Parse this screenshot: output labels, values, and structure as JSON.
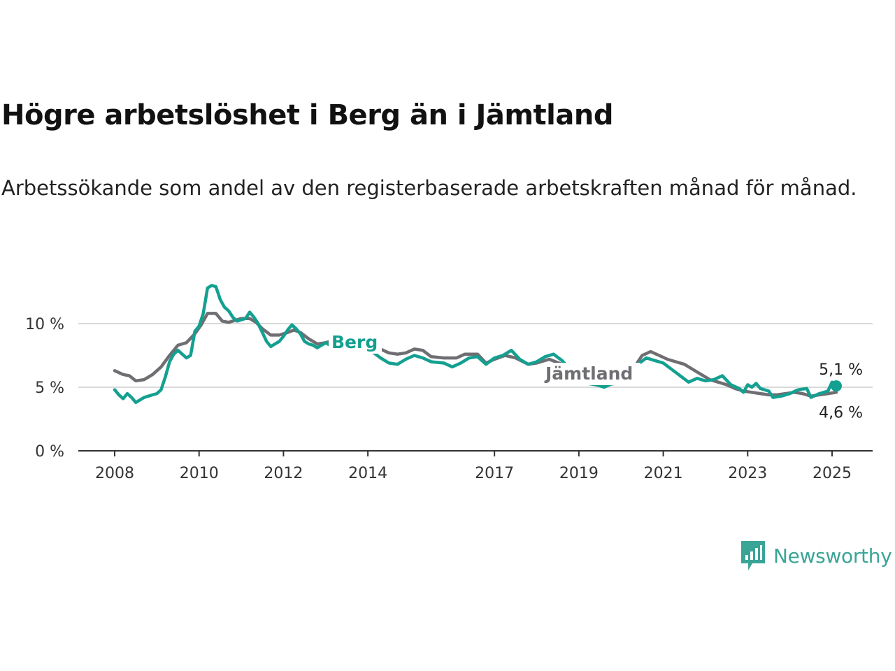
{
  "title": "Högre arbetslöshet i Berg än i Jämtland",
  "subtitle": "Arbetssökande som andel av den registerbaserade arbetskraften månad för månad.",
  "brand": {
    "name": "Newsworthy",
    "icon": "newsworthy-logo-icon",
    "color": "#3aa497"
  },
  "chart_data": {
    "type": "line",
    "y_unit": "%",
    "ylim": [
      0,
      13
    ],
    "xlim": [
      2007.9,
      2025.5
    ],
    "yticks": [
      {
        "value": 0,
        "label": "0 %"
      },
      {
        "value": 5,
        "label": "5 %"
      },
      {
        "value": 10,
        "label": "10 %"
      }
    ],
    "xticks": [
      {
        "value": 2008,
        "label": "2008"
      },
      {
        "value": 2010,
        "label": "2010"
      },
      {
        "value": 2012,
        "label": "2012"
      },
      {
        "value": 2014,
        "label": "2014"
      },
      {
        "value": 2017,
        "label": "2017"
      },
      {
        "value": 2019,
        "label": "2019"
      },
      {
        "value": 2021,
        "label": "2021"
      },
      {
        "value": 2023,
        "label": "2023"
      },
      {
        "value": 2025,
        "label": "2025"
      }
    ],
    "grid": true,
    "series": [
      {
        "name": "Jämtland",
        "color": "#6e6e73",
        "end_label": "4,6 %",
        "points": [
          [
            2008.0,
            6.3
          ],
          [
            2008.2,
            6.0
          ],
          [
            2008.35,
            5.9
          ],
          [
            2008.5,
            5.5
          ],
          [
            2008.7,
            5.6
          ],
          [
            2008.9,
            6.0
          ],
          [
            2009.1,
            6.6
          ],
          [
            2009.3,
            7.5
          ],
          [
            2009.5,
            8.3
          ],
          [
            2009.7,
            8.5
          ],
          [
            2009.9,
            9.2
          ],
          [
            2010.05,
            9.9
          ],
          [
            2010.2,
            10.8
          ],
          [
            2010.4,
            10.8
          ],
          [
            2010.55,
            10.2
          ],
          [
            2010.7,
            10.1
          ],
          [
            2010.9,
            10.3
          ],
          [
            2011.0,
            10.4
          ],
          [
            2011.2,
            10.4
          ],
          [
            2011.35,
            10.1
          ],
          [
            2011.5,
            9.6
          ],
          [
            2011.7,
            9.1
          ],
          [
            2011.9,
            9.1
          ],
          [
            2012.1,
            9.3
          ],
          [
            2012.25,
            9.5
          ],
          [
            2012.4,
            9.3
          ],
          [
            2012.6,
            8.8
          ],
          [
            2012.8,
            8.4
          ],
          [
            2013.0,
            8.5
          ],
          [
            2013.2,
            8.7
          ],
          [
            2013.35,
            9.1
          ],
          [
            2013.5,
            8.8
          ],
          [
            2013.8,
            8.6
          ],
          [
            2014.1,
            8.4
          ],
          [
            2014.3,
            8.0
          ],
          [
            2014.5,
            7.7
          ],
          [
            2014.7,
            7.6
          ],
          [
            2014.9,
            7.7
          ],
          [
            2015.1,
            8.0
          ],
          [
            2015.3,
            7.9
          ],
          [
            2015.5,
            7.4
          ],
          [
            2015.8,
            7.3
          ],
          [
            2016.1,
            7.3
          ],
          [
            2016.3,
            7.6
          ],
          [
            2016.6,
            7.6
          ],
          [
            2016.8,
            6.9
          ],
          [
            2017.0,
            7.2
          ],
          [
            2017.25,
            7.5
          ],
          [
            2017.5,
            7.3
          ],
          [
            2017.8,
            6.8
          ],
          [
            2018.0,
            6.9
          ],
          [
            2018.3,
            7.2
          ],
          [
            2018.6,
            6.8
          ],
          [
            2018.9,
            6.2
          ],
          [
            2019.1,
            5.8
          ],
          [
            2019.3,
            5.4
          ],
          [
            2019.6,
            5.2
          ],
          [
            2019.9,
            5.3
          ],
          [
            2020.1,
            5.8
          ],
          [
            2020.3,
            6.5
          ],
          [
            2020.5,
            7.5
          ],
          [
            2020.7,
            7.8
          ],
          [
            2020.9,
            7.5
          ],
          [
            2021.1,
            7.2
          ],
          [
            2021.3,
            7.0
          ],
          [
            2021.5,
            6.8
          ],
          [
            2021.7,
            6.4
          ],
          [
            2021.9,
            6.0
          ],
          [
            2022.1,
            5.6
          ],
          [
            2022.3,
            5.4
          ],
          [
            2022.5,
            5.2
          ],
          [
            2022.7,
            4.9
          ],
          [
            2022.9,
            4.7
          ],
          [
            2023.1,
            4.6
          ],
          [
            2023.3,
            4.5
          ],
          [
            2023.5,
            4.4
          ],
          [
            2023.7,
            4.4
          ],
          [
            2023.9,
            4.5
          ],
          [
            2024.1,
            4.6
          ],
          [
            2024.3,
            4.5
          ],
          [
            2024.5,
            4.3
          ],
          [
            2024.7,
            4.4
          ],
          [
            2024.9,
            4.5
          ],
          [
            2025.1,
            4.6
          ]
        ]
      },
      {
        "name": "Berg",
        "color": "#14a091",
        "end_label": "5,1 %",
        "points": [
          [
            2008.0,
            4.8
          ],
          [
            2008.1,
            4.4
          ],
          [
            2008.2,
            4.1
          ],
          [
            2008.3,
            4.5
          ],
          [
            2008.4,
            4.2
          ],
          [
            2008.5,
            3.8
          ],
          [
            2008.6,
            4.0
          ],
          [
            2008.7,
            4.2
          ],
          [
            2008.8,
            4.3
          ],
          [
            2008.9,
            4.4
          ],
          [
            2009.0,
            4.5
          ],
          [
            2009.1,
            4.8
          ],
          [
            2009.2,
            5.8
          ],
          [
            2009.3,
            7.0
          ],
          [
            2009.4,
            7.6
          ],
          [
            2009.5,
            7.9
          ],
          [
            2009.6,
            7.6
          ],
          [
            2009.7,
            7.3
          ],
          [
            2009.8,
            7.5
          ],
          [
            2009.9,
            9.4
          ],
          [
            2010.0,
            9.8
          ],
          [
            2010.1,
            10.8
          ],
          [
            2010.2,
            12.8
          ],
          [
            2010.3,
            13.0
          ],
          [
            2010.4,
            12.9
          ],
          [
            2010.5,
            11.9
          ],
          [
            2010.6,
            11.3
          ],
          [
            2010.7,
            11.0
          ],
          [
            2010.8,
            10.5
          ],
          [
            2010.9,
            10.2
          ],
          [
            2011.0,
            10.3
          ],
          [
            2011.1,
            10.4
          ],
          [
            2011.2,
            10.9
          ],
          [
            2011.3,
            10.5
          ],
          [
            2011.4,
            10.0
          ],
          [
            2011.5,
            9.3
          ],
          [
            2011.6,
            8.6
          ],
          [
            2011.7,
            8.2
          ],
          [
            2011.8,
            8.4
          ],
          [
            2011.9,
            8.6
          ],
          [
            2012.0,
            9.0
          ],
          [
            2012.1,
            9.5
          ],
          [
            2012.2,
            9.9
          ],
          [
            2012.3,
            9.6
          ],
          [
            2012.4,
            9.2
          ],
          [
            2012.5,
            8.6
          ],
          [
            2012.6,
            8.4
          ],
          [
            2012.7,
            8.3
          ],
          [
            2012.8,
            8.1
          ],
          [
            2012.9,
            8.3
          ],
          [
            2013.0,
            8.5
          ],
          [
            2013.1,
            8.3
          ],
          [
            2013.2,
            8.6
          ],
          [
            2013.3,
            8.5
          ],
          [
            2013.5,
            8.7
          ],
          [
            2013.8,
            8.4
          ],
          [
            2014.1,
            7.8
          ],
          [
            2014.3,
            7.3
          ],
          [
            2014.5,
            6.9
          ],
          [
            2014.7,
            6.8
          ],
          [
            2014.9,
            7.2
          ],
          [
            2015.1,
            7.5
          ],
          [
            2015.3,
            7.3
          ],
          [
            2015.5,
            7.0
          ],
          [
            2015.8,
            6.9
          ],
          [
            2016.0,
            6.6
          ],
          [
            2016.2,
            6.9
          ],
          [
            2016.4,
            7.3
          ],
          [
            2016.6,
            7.4
          ],
          [
            2016.8,
            6.8
          ],
          [
            2017.0,
            7.3
          ],
          [
            2017.2,
            7.5
          ],
          [
            2017.4,
            7.9
          ],
          [
            2017.6,
            7.2
          ],
          [
            2017.8,
            6.8
          ],
          [
            2018.0,
            7.0
          ],
          [
            2018.2,
            7.4
          ],
          [
            2018.4,
            7.6
          ],
          [
            2018.6,
            7.1
          ],
          [
            2018.8,
            6.4
          ],
          [
            2019.0,
            5.6
          ],
          [
            2019.2,
            5.3
          ],
          [
            2019.4,
            5.2
          ],
          [
            2019.6,
            5.0
          ],
          [
            2019.8,
            5.3
          ],
          [
            2020.0,
            5.5
          ],
          [
            2020.2,
            6.0
          ],
          [
            2020.4,
            6.8
          ],
          [
            2020.6,
            7.3
          ],
          [
            2020.8,
            7.1
          ],
          [
            2021.0,
            6.9
          ],
          [
            2021.2,
            6.4
          ],
          [
            2021.4,
            5.9
          ],
          [
            2021.6,
            5.4
          ],
          [
            2021.8,
            5.7
          ],
          [
            2022.0,
            5.5
          ],
          [
            2022.2,
            5.6
          ],
          [
            2022.4,
            5.9
          ],
          [
            2022.6,
            5.2
          ],
          [
            2022.8,
            4.9
          ],
          [
            2022.9,
            4.6
          ],
          [
            2023.0,
            5.2
          ],
          [
            2023.1,
            5.0
          ],
          [
            2023.2,
            5.3
          ],
          [
            2023.3,
            4.9
          ],
          [
            2023.5,
            4.7
          ],
          [
            2023.6,
            4.2
          ],
          [
            2023.8,
            4.3
          ],
          [
            2024.0,
            4.5
          ],
          [
            2024.2,
            4.8
          ],
          [
            2024.4,
            4.9
          ],
          [
            2024.5,
            4.2
          ],
          [
            2024.7,
            4.5
          ],
          [
            2024.9,
            4.7
          ],
          [
            2025.0,
            5.4
          ],
          [
            2025.1,
            5.1
          ]
        ]
      }
    ]
  }
}
